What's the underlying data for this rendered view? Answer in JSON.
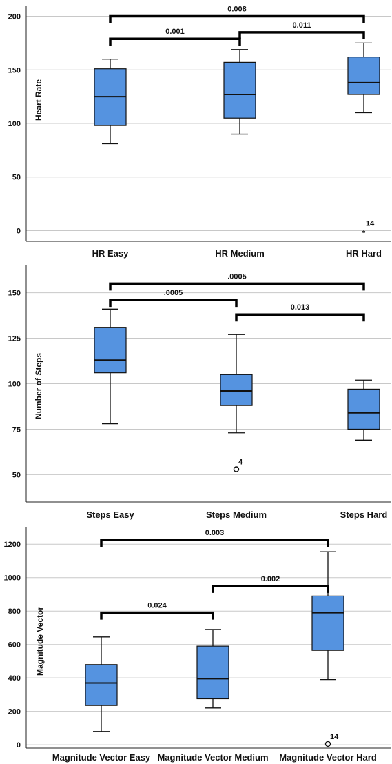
{
  "chart_data": [
    {
      "type": "boxplot",
      "ylabel": "Heart Rate",
      "ylim": [
        -10,
        210
      ],
      "yticks": [
        0,
        50,
        100,
        150,
        200
      ],
      "grid": true,
      "box_color": "#5593e0",
      "categories": [
        "HR Easy",
        "HR Medium",
        "HR Hard"
      ],
      "boxes": [
        {
          "min": 81,
          "q1": 98,
          "median": 125,
          "q3": 151,
          "max": 160
        },
        {
          "min": 90,
          "q1": 105,
          "median": 127,
          "q3": 157,
          "max": 169
        },
        {
          "min": 110,
          "q1": 127,
          "median": 138,
          "q3": 162,
          "max": 175
        }
      ],
      "outliers": [
        {
          "category": 2,
          "value": 0,
          "label": "14",
          "marker": "star"
        }
      ],
      "comparisons": [
        {
          "from": 0,
          "to": 2,
          "level": 200,
          "label": "0.008"
        },
        {
          "from": 0,
          "to": 1,
          "level": 179,
          "label": "0.001"
        },
        {
          "from": 1,
          "to": 2,
          "level": 185,
          "label": "0.011"
        }
      ]
    },
    {
      "type": "boxplot",
      "ylabel": "Number of Steps",
      "ylim": [
        35,
        165
      ],
      "yticks": [
        50,
        75,
        100,
        125,
        150
      ],
      "grid": true,
      "box_color": "#5593e0",
      "categories": [
        "Steps Easy",
        "Steps Medium",
        "Steps Hard"
      ],
      "boxes": [
        {
          "min": 78,
          "q1": 106,
          "median": 113,
          "q3": 131,
          "max": 141
        },
        {
          "min": 73,
          "q1": 88,
          "median": 96,
          "q3": 105,
          "max": 127
        },
        {
          "min": 69,
          "q1": 75,
          "median": 84,
          "q3": 97,
          "max": 102
        }
      ],
      "outliers": [
        {
          "category": 1,
          "value": 53,
          "label": "4",
          "marker": "circle"
        }
      ],
      "comparisons": [
        {
          "from": 0,
          "to": 2,
          "level": 155,
          "label": ".0005"
        },
        {
          "from": 0,
          "to": 1,
          "level": 146,
          "label": ".0005"
        },
        {
          "from": 1,
          "to": 2,
          "level": 138,
          "label": "0.013"
        }
      ]
    },
    {
      "type": "boxplot",
      "ylabel": "Magnitude Vector",
      "ylim": [
        -20,
        1300
      ],
      "yticks": [
        0,
        200,
        400,
        600,
        800,
        1000,
        1200
      ],
      "grid": true,
      "box_color": "#5593e0",
      "categories": [
        "Magnitude Vector Easy",
        "Magnitude Vector Medium",
        "Magnitude Vector Hard"
      ],
      "boxes": [
        {
          "min": 80,
          "q1": 235,
          "median": 370,
          "q3": 480,
          "max": 645
        },
        {
          "min": 220,
          "q1": 275,
          "median": 395,
          "q3": 590,
          "max": 690
        },
        {
          "min": 390,
          "q1": 565,
          "median": 790,
          "q3": 890,
          "max": 1155
        }
      ],
      "outliers": [
        {
          "category": 2,
          "value": 5,
          "label": "14",
          "marker": "circle"
        }
      ],
      "comparisons": [
        {
          "from": 0,
          "to": 2,
          "level": 1225,
          "label": "0.003"
        },
        {
          "from": 1,
          "to": 2,
          "level": 950,
          "label": "0.002"
        },
        {
          "from": 0,
          "to": 1,
          "level": 790,
          "label": "0.024"
        }
      ]
    }
  ]
}
